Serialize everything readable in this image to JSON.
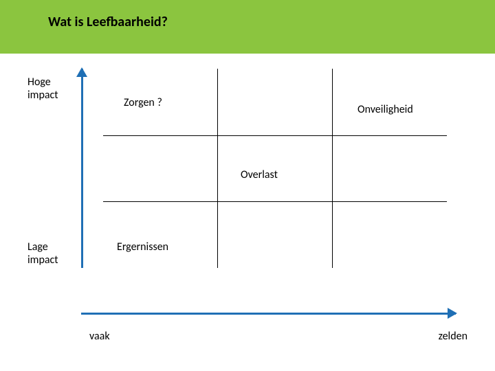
{
  "header": {
    "title": "Wat is Leefbaarheid?",
    "background_color": "#8bc53f"
  },
  "diagram": {
    "type": "quadrant",
    "arrow_color": "#1f6fb5",
    "grid_line_color": "#000000",
    "y_axis": {
      "top_label": "Hoge impact",
      "bottom_label": "Lage impact"
    },
    "x_axis": {
      "left_label": "vaak",
      "right_label": "zelden"
    },
    "cells": {
      "top_left": "Zorgen ?",
      "top_right": "Onveiligheid",
      "middle": "Overlast",
      "bottom_left": "Ergernissen"
    },
    "grid": {
      "cols": 3,
      "rows": 3
    },
    "font_family": "Calibri",
    "title_fontsize": 20,
    "label_fontsize": 16
  }
}
